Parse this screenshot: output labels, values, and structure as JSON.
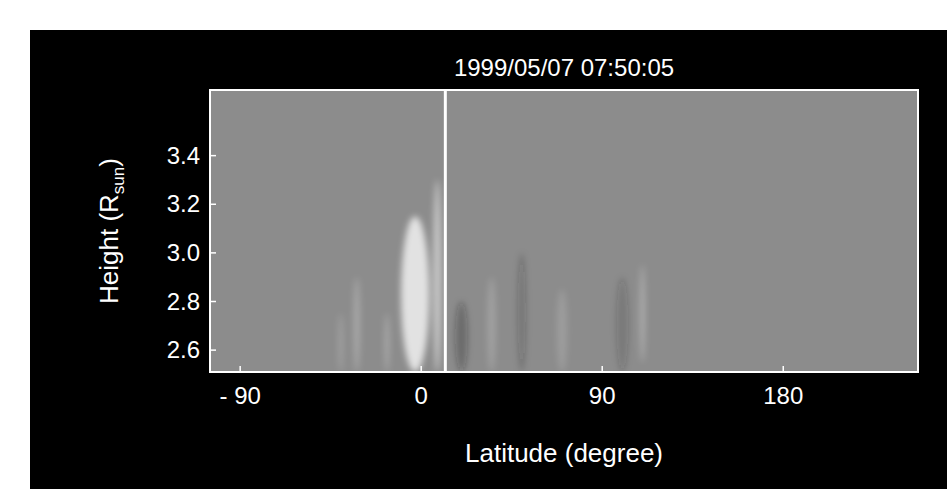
{
  "chart_data": {
    "type": "image",
    "title": "1999/05/07 07:50:05",
    "x_label": "Latitude (degree)",
    "y_label_parts": [
      "Height (R",
      "sun",
      ")"
    ],
    "xlim": [
      -105,
      247
    ],
    "ylim": [
      2.51,
      3.67
    ],
    "xticks": [
      {
        "value": -90,
        "label": "- 90"
      },
      0,
      90,
      180
    ],
    "yticks": [
      2.6,
      2.8,
      3.0,
      3.2,
      3.4
    ],
    "cursor_latitude": 12,
    "streamers": [
      {
        "latitude": -40,
        "height_bottom": 2.51,
        "height_top": 2.75,
        "width": 2,
        "brightness": 0.3
      },
      {
        "latitude": -32,
        "height_bottom": 2.51,
        "height_top": 2.9,
        "width": 3,
        "brightness": 0.35
      },
      {
        "latitude": -17,
        "height_bottom": 2.51,
        "height_top": 2.75,
        "width": 2,
        "brightness": 0.4
      },
      {
        "latitude": -3,
        "height_bottom": 2.51,
        "height_top": 3.15,
        "width": 14,
        "brightness": 1.0
      },
      {
        "latitude": 8,
        "height_bottom": 2.51,
        "height_top": 3.3,
        "width": 4,
        "brightness": 0.7
      },
      {
        "latitude": 20,
        "height_bottom": 2.51,
        "height_top": 2.8,
        "width": 6,
        "brightness": -0.4
      },
      {
        "latitude": 35,
        "height_bottom": 2.51,
        "height_top": 2.9,
        "width": 4,
        "brightness": 0.25
      },
      {
        "latitude": 50,
        "height_bottom": 2.51,
        "height_top": 3.0,
        "width": 4,
        "brightness": -0.3
      },
      {
        "latitude": 70,
        "height_bottom": 2.51,
        "height_top": 2.85,
        "width": 5,
        "brightness": 0.2
      },
      {
        "latitude": 100,
        "height_bottom": 2.51,
        "height_top": 2.9,
        "width": 6,
        "brightness": -0.25
      },
      {
        "latitude": 110,
        "height_bottom": 2.55,
        "height_top": 2.95,
        "width": 2,
        "brightness": 0.5
      }
    ]
  }
}
